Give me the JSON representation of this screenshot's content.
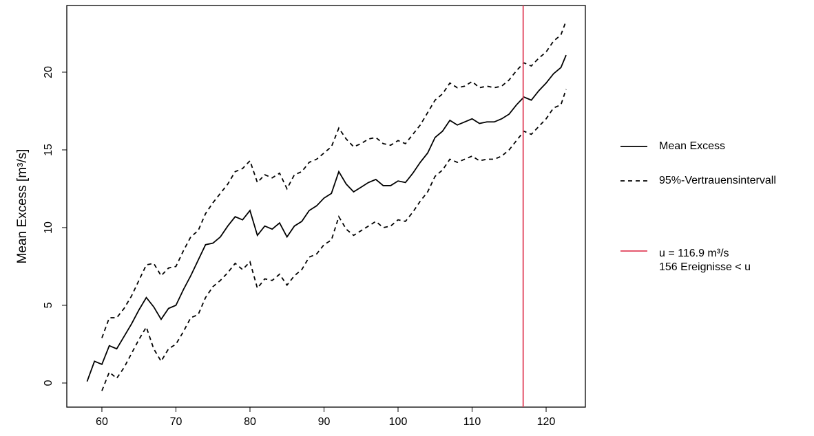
{
  "chart_data": {
    "type": "line",
    "y_label": "Mean Excess [m³/s]",
    "x": [
      58,
      59,
      60,
      61,
      62,
      63,
      64,
      65,
      66,
      67,
      68,
      69,
      70,
      71,
      72,
      73,
      74,
      75,
      76,
      77,
      78,
      79,
      80,
      81,
      82,
      83,
      84,
      85,
      86,
      87,
      88,
      89,
      90,
      91,
      92,
      93,
      94,
      95,
      96,
      97,
      98,
      99,
      100,
      101,
      102,
      103,
      104,
      105,
      106,
      107,
      108,
      109,
      110,
      111,
      112,
      113,
      114,
      115,
      116,
      117,
      118,
      119,
      120,
      121,
      122,
      122.7
    ],
    "series": [
      {
        "name": "Mean Excess",
        "color": "#000000",
        "dash": false,
        "values": [
          0.1,
          1.4,
          1.2,
          2.4,
          2.2,
          3.0,
          3.8,
          4.7,
          5.5,
          4.9,
          4.1,
          4.8,
          5.0,
          6.0,
          6.9,
          7.9,
          8.9,
          9.0,
          9.4,
          10.1,
          10.7,
          10.5,
          11.1,
          9.5,
          10.1,
          9.9,
          10.3,
          9.4,
          10.1,
          10.4,
          11.1,
          11.4,
          11.9,
          12.2,
          13.6,
          12.8,
          12.3,
          12.6,
          12.9,
          13.1,
          12.7,
          12.7,
          13.0,
          12.9,
          13.5,
          14.2,
          14.8,
          15.8,
          16.2,
          16.9,
          16.6,
          16.8,
          17.0,
          16.7,
          16.8,
          16.8,
          17.0,
          17.3,
          17.9,
          18.4,
          18.2,
          18.8,
          19.3,
          19.9,
          20.3,
          21.1
        ]
      },
      {
        "name": "95%-Vertrauensintervall",
        "color": "#000000",
        "dash": true,
        "values": [
          null,
          null,
          2.9,
          4.2,
          4.2,
          4.8,
          5.6,
          6.6,
          7.6,
          7.7,
          6.9,
          7.4,
          7.5,
          8.5,
          9.4,
          9.8,
          10.9,
          11.6,
          12.2,
          12.8,
          13.6,
          13.8,
          14.3,
          12.9,
          13.4,
          13.2,
          13.5,
          12.5,
          13.4,
          13.6,
          14.2,
          14.4,
          14.8,
          15.2,
          16.4,
          15.7,
          15.2,
          15.4,
          15.7,
          15.8,
          15.4,
          15.3,
          15.6,
          15.4,
          16.0,
          16.6,
          17.4,
          18.2,
          18.6,
          19.3,
          19.0,
          19.1,
          19.4,
          19.0,
          19.1,
          19.0,
          19.1,
          19.5,
          20.1,
          20.6,
          20.4,
          20.9,
          21.3,
          22.0,
          22.4,
          23.3
        ],
        "lower": [
          null,
          null,
          -0.5,
          0.7,
          0.3,
          1.0,
          1.9,
          2.8,
          3.6,
          2.2,
          1.4,
          2.2,
          2.5,
          3.3,
          4.2,
          4.4,
          5.5,
          6.2,
          6.6,
          7.1,
          7.7,
          7.3,
          7.8,
          6.1,
          6.7,
          6.6,
          7.0,
          6.3,
          6.9,
          7.3,
          8.1,
          8.3,
          8.9,
          9.2,
          10.7,
          9.9,
          9.5,
          9.8,
          10.1,
          10.4,
          10.0,
          10.1,
          10.5,
          10.4,
          11.0,
          11.7,
          12.3,
          13.3,
          13.7,
          14.4,
          14.2,
          14.4,
          14.6,
          14.3,
          14.4,
          14.4,
          14.6,
          15.0,
          15.6,
          16.2,
          16.0,
          16.5,
          17.0,
          17.7,
          17.9,
          18.9
        ]
      }
    ],
    "threshold": {
      "value": 116.9,
      "color": "#e0405a",
      "label": "u = 116.9 m³/s",
      "count_label": "156 Ereignisse < u"
    },
    "xlim": [
      55.26,
      125.3
    ],
    "ylim": [
      -1.55,
      24.29
    ],
    "xticks": [
      60,
      70,
      80,
      90,
      100,
      110,
      120
    ],
    "yticks": [
      0,
      5,
      10,
      15,
      20
    ]
  }
}
